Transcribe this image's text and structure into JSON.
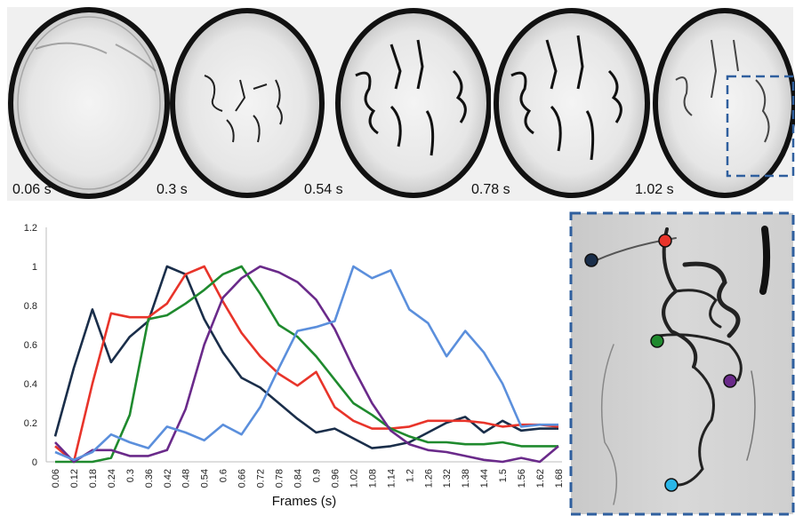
{
  "frames": {
    "labels": [
      "0.06 s",
      "0.3 s",
      "0.54 s",
      "0.78 s",
      "1.02 s"
    ]
  },
  "chart_data": {
    "type": "line",
    "title": "",
    "xlabel": "Frames (s)",
    "ylabel": "",
    "ylim": [
      0,
      1.2
    ],
    "yticks": [
      0,
      0.2,
      0.4,
      0.6,
      0.8,
      1,
      1.2
    ],
    "ytick_labels": [
      "0",
      "0.2",
      "0.4",
      "0.6",
      "0.8",
      "1",
      "1.2"
    ],
    "categories": [
      "0.06",
      "0.12",
      "0.18",
      "0.24",
      "0.3",
      "0.36",
      "0.42",
      "0.48",
      "0.54",
      "0.6",
      "0.66",
      "0.72",
      "0.78",
      "0.84",
      "0.9",
      "0.96",
      "1.02",
      "1.08",
      "1.14",
      "1.2",
      "1.26",
      "1.32",
      "1.38",
      "1.44",
      "1.5",
      "1.56",
      "1.62",
      "1.68"
    ],
    "grid": false,
    "legend": "none",
    "series": [
      {
        "color": "#1a2e4a",
        "values": [
          0.13,
          0.48,
          0.78,
          0.51,
          0.64,
          0.72,
          1.0,
          0.96,
          0.73,
          0.56,
          0.43,
          0.38,
          0.3,
          0.22,
          0.15,
          0.17,
          0.12,
          0.07,
          0.08,
          0.1,
          0.15,
          0.2,
          0.23,
          0.15,
          0.21,
          0.16,
          0.17,
          0.17
        ]
      },
      {
        "color": "#e8342a",
        "values": [
          0.08,
          0.0,
          0.4,
          0.76,
          0.74,
          0.74,
          0.81,
          0.96,
          1.0,
          0.82,
          0.66,
          0.54,
          0.45,
          0.39,
          0.46,
          0.28,
          0.21,
          0.17,
          0.17,
          0.18,
          0.21,
          0.21,
          0.21,
          0.2,
          0.18,
          0.19,
          0.19,
          0.18
        ]
      },
      {
        "color": "#1f8a2e",
        "values": [
          0.0,
          0.0,
          0.0,
          0.02,
          0.24,
          0.73,
          0.75,
          0.81,
          0.88,
          0.96,
          1.0,
          0.86,
          0.7,
          0.64,
          0.54,
          0.42,
          0.3,
          0.24,
          0.17,
          0.13,
          0.1,
          0.1,
          0.09,
          0.09,
          0.1,
          0.08,
          0.08,
          0.08
        ]
      },
      {
        "color": "#6a2a8a",
        "values": [
          0.1,
          0.0,
          0.06,
          0.06,
          0.03,
          0.03,
          0.06,
          0.27,
          0.6,
          0.84,
          0.94,
          1.0,
          0.97,
          0.92,
          0.83,
          0.68,
          0.48,
          0.3,
          0.16,
          0.09,
          0.06,
          0.05,
          0.03,
          0.01,
          0.0,
          0.02,
          0.0,
          0.08
        ]
      },
      {
        "color": "#5b8fdc",
        "values": [
          0.05,
          0.01,
          0.05,
          0.14,
          0.1,
          0.07,
          0.18,
          0.15,
          0.11,
          0.19,
          0.14,
          0.28,
          0.48,
          0.67,
          0.69,
          0.72,
          1.0,
          0.94,
          0.98,
          0.78,
          0.71,
          0.54,
          0.67,
          0.56,
          0.4,
          0.18,
          0.19,
          0.19
        ]
      }
    ]
  },
  "inset": {
    "border_color": "#2f5f9e",
    "markers": [
      {
        "color": "#1a2e4a"
      },
      {
        "color": "#e8342a"
      },
      {
        "color": "#1f8a2e"
      },
      {
        "color": "#6a2a8a"
      },
      {
        "color": "#29b6e8"
      }
    ]
  }
}
